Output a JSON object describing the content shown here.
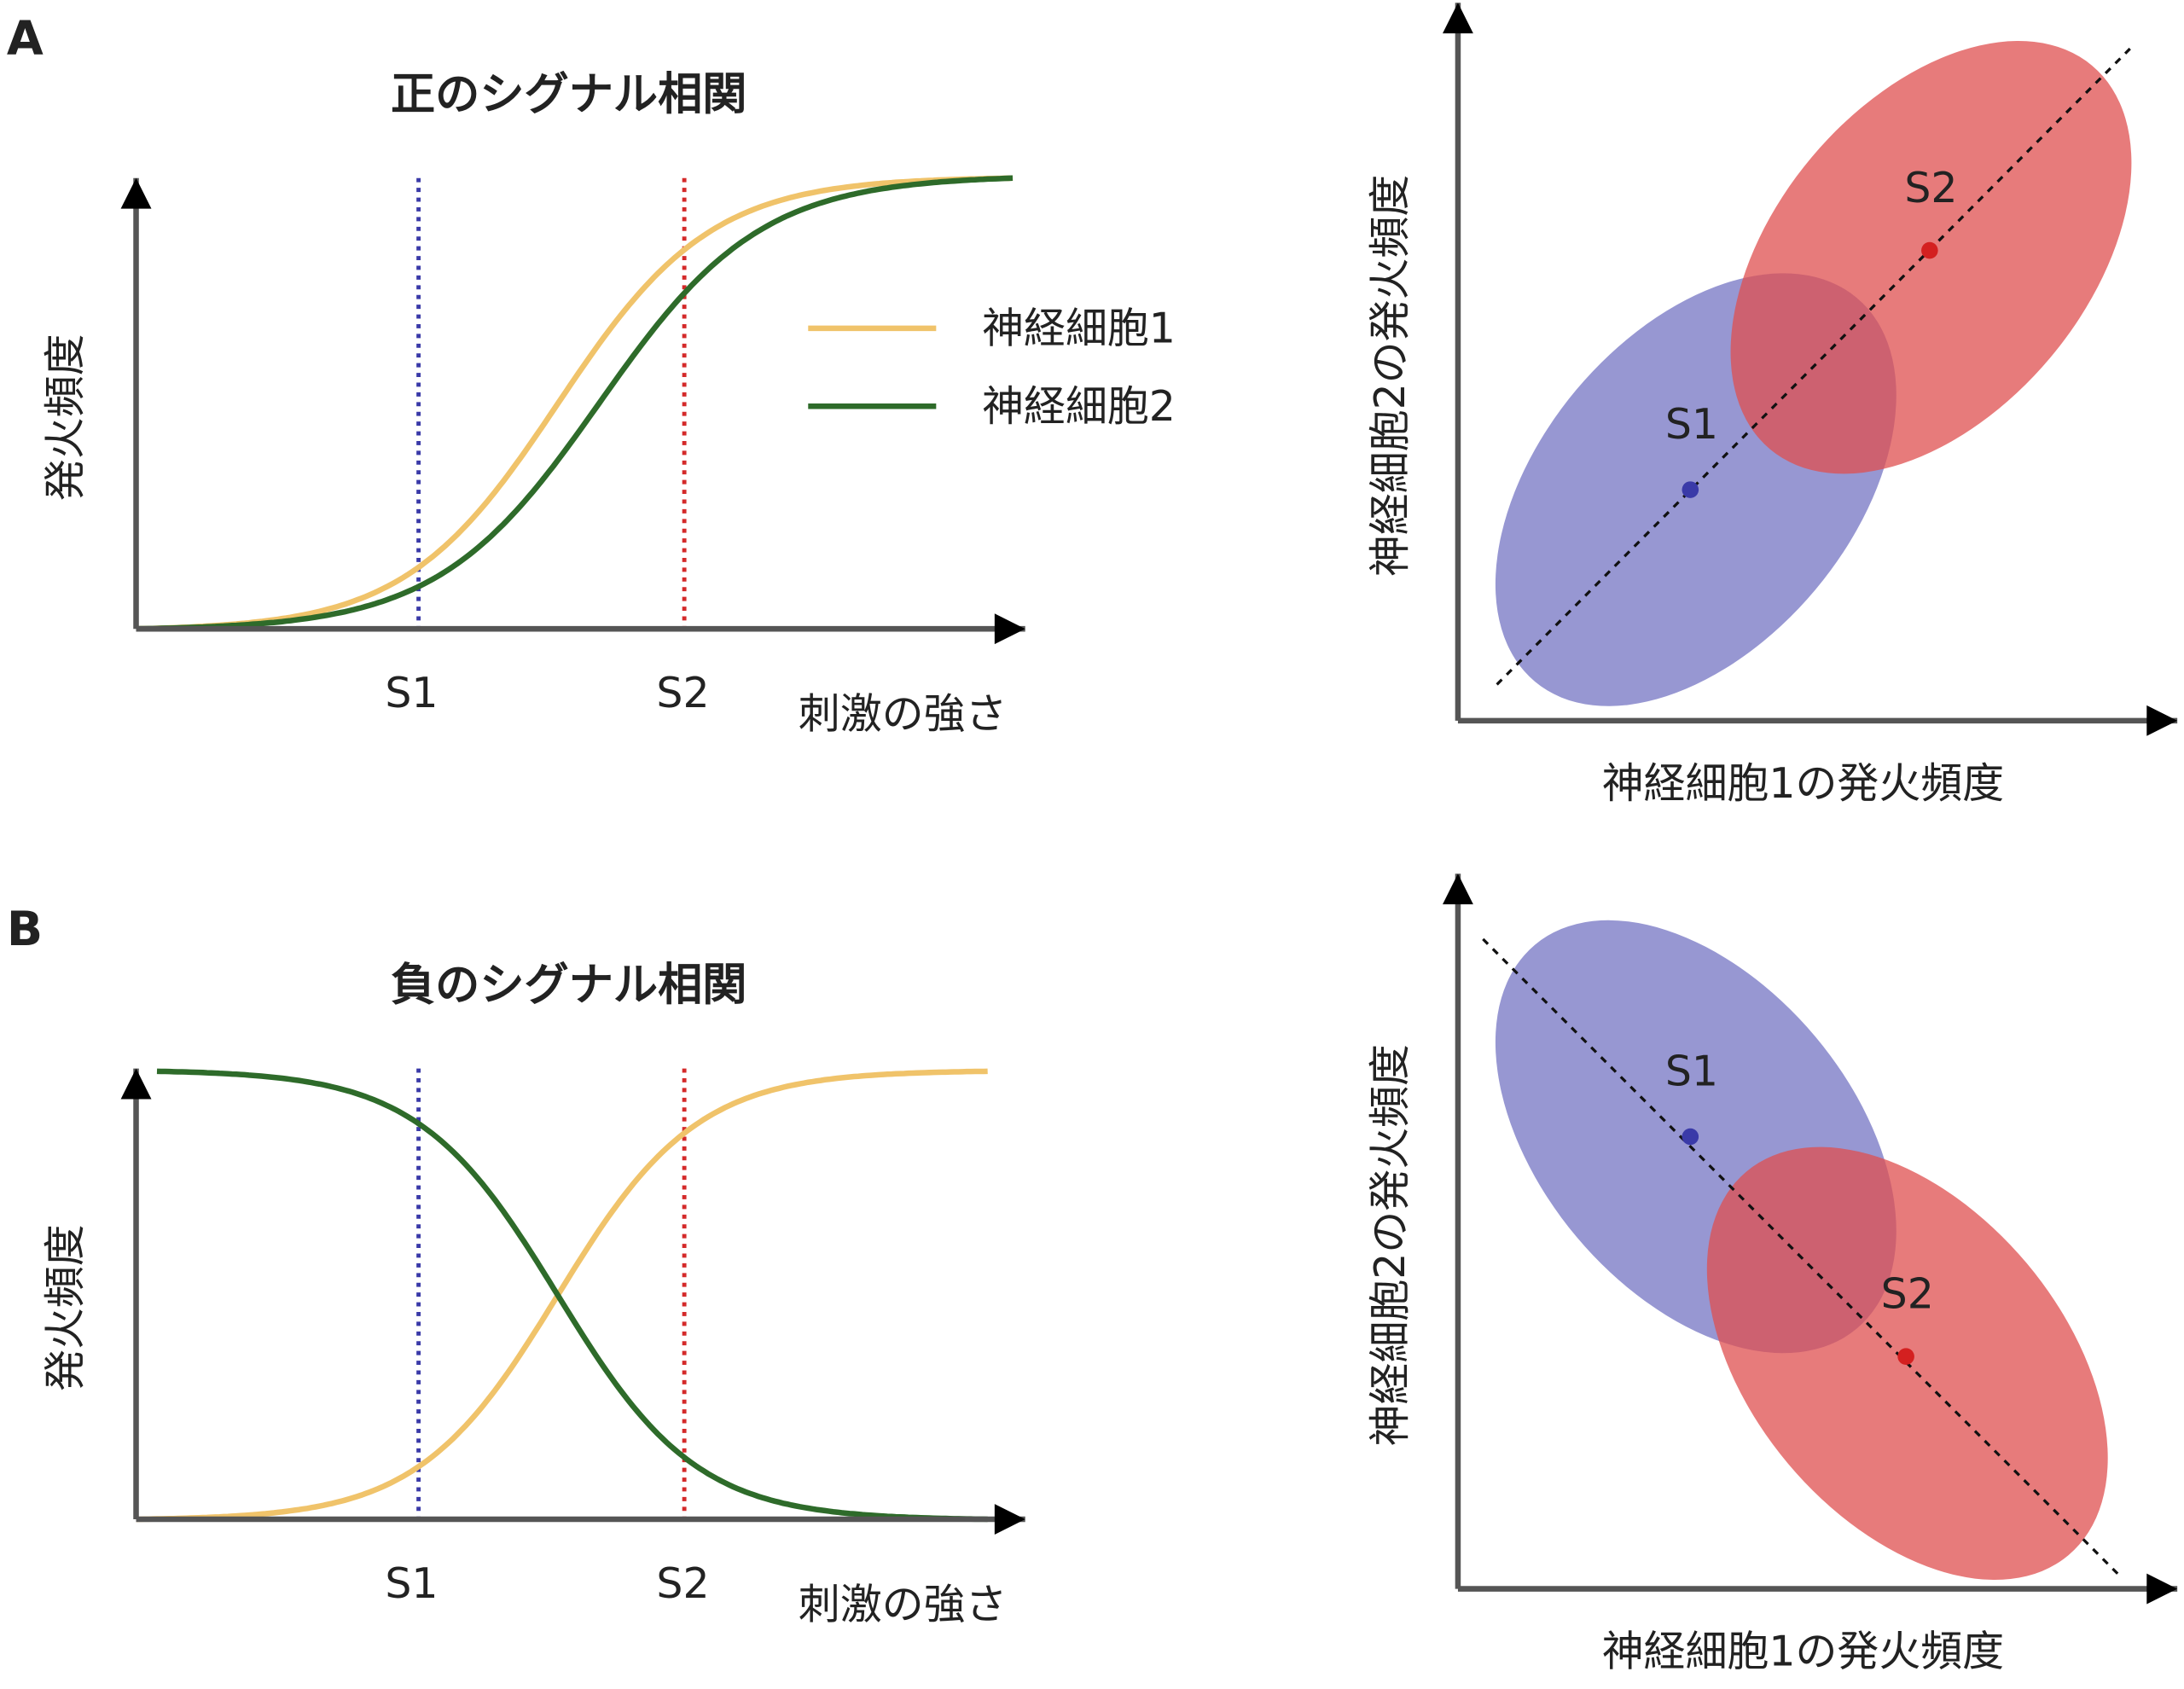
{
  "panels": [
    {
      "label": "A",
      "title": "正のシグナル相関",
      "y_axis_label": "発火頻度",
      "x_axis_label": "刺激の強さ",
      "stimuli": [
        "S1",
        "S2"
      ],
      "legend": [
        "神経細胞1",
        "神経細胞2"
      ],
      "scatter": {
        "x_axis_label": "神経細胞1の発火頻度",
        "y_axis_label": "神経細胞2の発火頻度",
        "points": [
          "S1",
          "S2"
        ]
      }
    },
    {
      "label": "B",
      "title": "負のシグナル相関",
      "y_axis_label": "発火頻度",
      "x_axis_label": "刺激の強さ",
      "stimuli": [
        "S1",
        "S2"
      ],
      "scatter": {
        "x_axis_label": "神経細胞1の発火頻度",
        "y_axis_label": "神経細胞2の発火頻度",
        "points": [
          "S1",
          "S2"
        ]
      }
    }
  ]
}
